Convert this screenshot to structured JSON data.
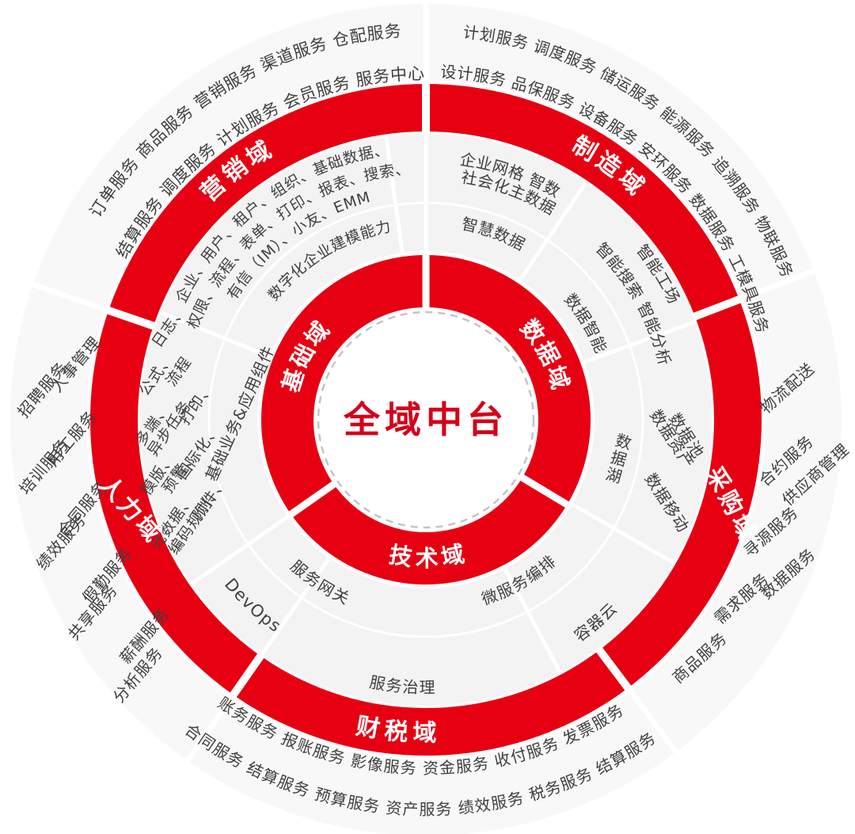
{
  "diagram": {
    "center_label": "全域中台",
    "inner_domains": {
      "foundation": "基础域",
      "data": "数据域",
      "technology": "技术域"
    },
    "outer_domains": {
      "marketing": "营销域",
      "manufacturing": "制造域",
      "procurement": "采购域",
      "finance_tax": "财税域",
      "human_resources": "人力域"
    },
    "middle_services": {
      "foundation_line1": "企业、用户、租户、组织、基础数据、",
      "foundation_line2": "权限、流程、表单、打印、报表、搜索、",
      "foundation_line3": "有信（IM）、小友、EMM",
      "modeling": "数字化企业建模能力",
      "grid_line1": "企业网格  智数",
      "grid_line2": "社会化主数据",
      "smart_data": "智慧数据",
      "intel_line1": "智能工场",
      "intel_line2": "智能搜索 智能分析",
      "data_intelligence": "数据智能",
      "data_pool": "数据池",
      "data_asset": "数据资产",
      "data_move": "数据移动",
      "data_lake": "数据湖",
      "microservice": "微服务编排",
      "container_cloud": "容器云",
      "service_governance": "服务治理",
      "service_gateway": "服务网关",
      "devops": "DevOps",
      "base_components": "基础业务&应用组件",
      "platform_words_line1": [
        "元数据、",
        "模版、",
        "多端、",
        "公式、",
        "日志、"
      ],
      "platform_words_line2": [
        "编码规则、",
        "预警、",
        "异步任务、",
        "流程"
      ],
      "platform_words_line3": [
        "附件、",
        "国际化、",
        "打印、"
      ]
    },
    "outer_services": {
      "marketing_line1": "订单服务 商品服务 营销服务 渠道服务 仓配服务",
      "marketing_line2": "结算服务 调度服务 计划服务 会员服务 服务中心",
      "manufacturing_line1": "计划服务 调度服务 储运服务 能源服务 追溯服务 物联服务",
      "manufacturing_line2": "设计服务 品保服务 设备服务 安环服务 数据服务 工模具服务",
      "procurement_inner": [
        "商品服务",
        "需求服务",
        "寻源服务",
        "合约服务",
        "物流配送"
      ],
      "procurement_outer": [
        "数据服务",
        "供应商管理"
      ],
      "finance_line1": "账务服务 报账服务 影像服务 资金服务 收付服务 发票服务",
      "finance_line2": "合同服务 结算服务 预算服务 资产服务 绩效服务 税务服务 结算服务",
      "hr_line1": [
        "人事管理",
        "用工服务",
        "合同服务",
        "假勤服务",
        "薪酬服务"
      ],
      "hr_line2": [
        "招聘服务",
        "培训服务",
        "绩效服务",
        "共享服务",
        "分析服务"
      ]
    },
    "colors": {
      "ring_red": "#e60012",
      "center_red": "#d50019",
      "text_dark": "#3f3f3f",
      "middle_ring_bg": "#f3f3f3",
      "outer_ring_bg": "#f8f8f8",
      "dash_gray": "#c4c4c4"
    }
  }
}
